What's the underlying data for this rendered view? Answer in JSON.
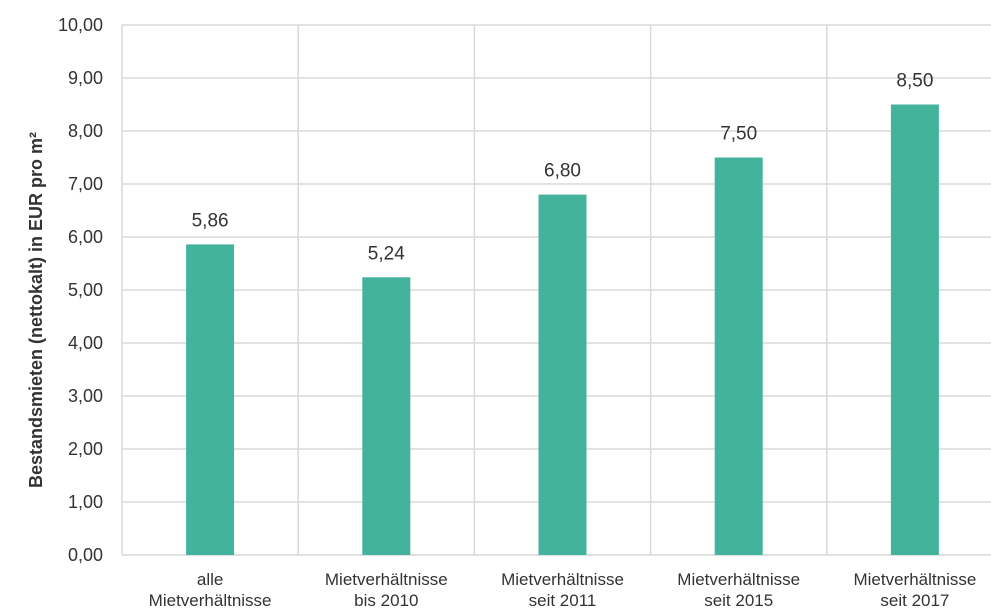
{
  "chart_data": {
    "type": "bar",
    "title": "",
    "xlabel": "",
    "ylabel": "Bestandsmieten (nettokalt) in EUR pro m²",
    "categories": [
      [
        "alle",
        "Mietverhältnisse"
      ],
      [
        "Mietverhältnisse",
        "bis 2010"
      ],
      [
        "Mietverhältnisse",
        "seit 2011"
      ],
      [
        "Mietverhältnisse",
        "seit 2015"
      ],
      [
        "Mietverhältnisse",
        "seit 2017"
      ]
    ],
    "values": [
      5.86,
      5.24,
      6.8,
      7.5,
      8.5
    ],
    "value_labels": [
      "5,86",
      "5,24",
      "6,80",
      "7,50",
      "8,50"
    ],
    "ylim": [
      0,
      10
    ],
    "yticks": [
      0,
      1,
      2,
      3,
      4,
      5,
      6,
      7,
      8,
      9,
      10
    ],
    "ytick_labels": [
      "0,00",
      "1,00",
      "2,00",
      "3,00",
      "4,00",
      "5,00",
      "6,00",
      "7,00",
      "8,00",
      "9,00",
      "10,00"
    ],
    "grid": true,
    "legend": "none",
    "colors": {
      "bar": "#43B39C",
      "grid": "#D9D9D9",
      "text": "#333333"
    }
  }
}
